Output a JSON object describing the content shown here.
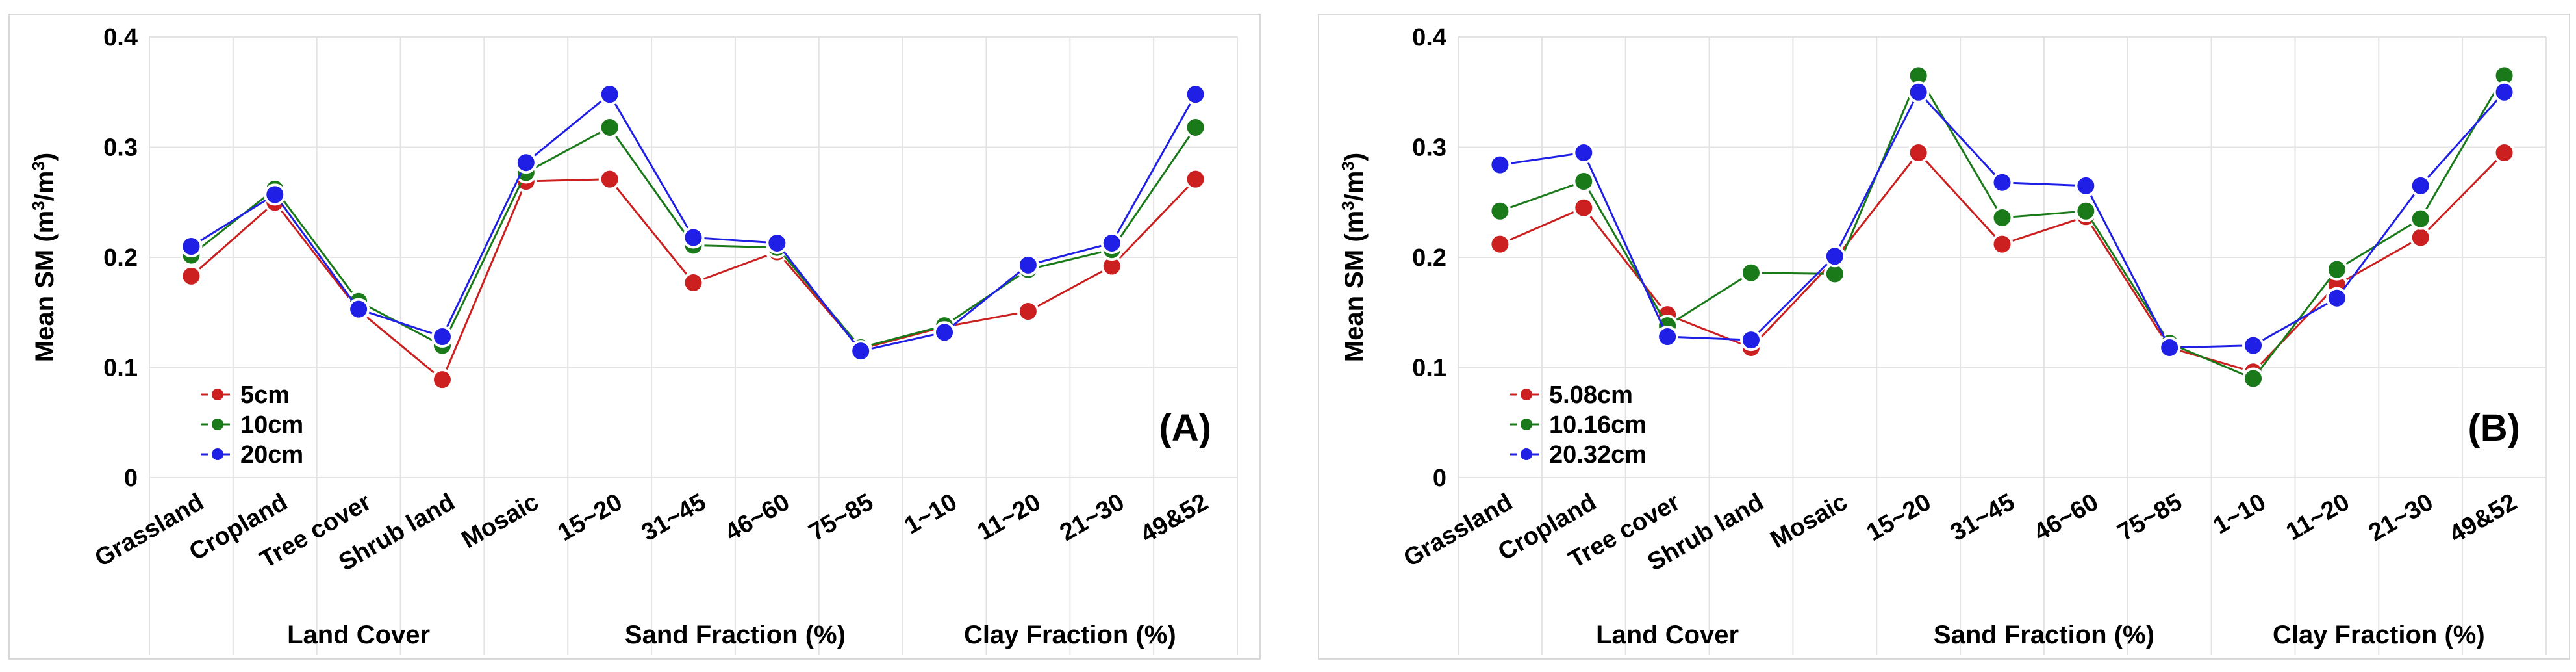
{
  "chart_data": [
    {
      "type": "line",
      "panel": "(A)",
      "categories": [
        "Grassland",
        "Cropland",
        "Tree cover",
        "Shrub land",
        "Mosaic",
        "15~20",
        "31~45",
        "46~60",
        "75~85",
        "1~10",
        "11~20",
        "21~30",
        "49&52"
      ],
      "groups": [
        {
          "label": "Land Cover",
          "start": 0,
          "end": 4
        },
        {
          "label": "Sand Fraction (%)",
          "start": 5,
          "end": 8
        },
        {
          "label": "Clay Fraction (%)",
          "start": 9,
          "end": 12
        }
      ],
      "ylabel_main": "Mean SM (m",
      "ylabel_sup1": "3",
      "ylabel_mid": "/m",
      "ylabel_sup2": "3",
      "ylabel_end": ")",
      "ylim": [
        0,
        0.4
      ],
      "yticks": [
        "0",
        "0.1",
        "0.2",
        "0.3",
        "0.4"
      ],
      "legend_position": "bottom-left",
      "series": [
        {
          "name": "5cm",
          "color": "#cc1f1f",
          "values": [
            0.183,
            0.25,
            0.152,
            0.089,
            0.269,
            0.271,
            0.177,
            0.205,
            0.117,
            0.137,
            0.151,
            0.192,
            0.271
          ]
        },
        {
          "name": "10cm",
          "color": "#1a7a1a",
          "values": [
            0.202,
            0.262,
            0.16,
            0.12,
            0.277,
            0.318,
            0.211,
            0.209,
            0.118,
            0.138,
            0.189,
            0.207,
            0.318
          ]
        },
        {
          "name": "20cm",
          "color": "#1f1fe6",
          "values": [
            0.21,
            0.257,
            0.153,
            0.128,
            0.286,
            0.348,
            0.218,
            0.213,
            0.115,
            0.132,
            0.193,
            0.213,
            0.348
          ]
        }
      ]
    },
    {
      "type": "line",
      "panel": "(B)",
      "categories": [
        "Grassland",
        "Cropland",
        "Tree cover",
        "Shrub land",
        "Mosaic",
        "15~20",
        "31~45",
        "46~60",
        "75~85",
        "1~10",
        "11~20",
        "21~30",
        "49&52"
      ],
      "groups": [
        {
          "label": "Land Cover",
          "start": 0,
          "end": 4
        },
        {
          "label": "Sand Fraction (%)",
          "start": 5,
          "end": 8
        },
        {
          "label": "Clay Fraction (%)",
          "start": 9,
          "end": 12
        }
      ],
      "ylabel_main": "Mean SM (m",
      "ylabel_sup1": "3",
      "ylabel_mid": "/m",
      "ylabel_sup2": "3",
      "ylabel_end": ")",
      "ylim": [
        0,
        0.4
      ],
      "yticks": [
        "0",
        "0.1",
        "0.2",
        "0.3",
        "0.4"
      ],
      "legend_position": "bottom-left",
      "series": [
        {
          "name": "5.08cm",
          "color": "#cc1f1f",
          "values": [
            0.212,
            0.245,
            0.148,
            0.118,
            0.198,
            0.295,
            0.212,
            0.237,
            0.118,
            0.096,
            0.175,
            0.218,
            0.295
          ]
        },
        {
          "name": "10.16cm",
          "color": "#1a7a1a",
          "values": [
            0.242,
            0.269,
            0.138,
            0.186,
            0.185,
            0.365,
            0.236,
            0.242,
            0.122,
            0.09,
            0.189,
            0.235,
            0.365
          ]
        },
        {
          "name": "20.32cm",
          "color": "#1f1fe6",
          "values": [
            0.284,
            0.295,
            0.128,
            0.125,
            0.201,
            0.35,
            0.268,
            0.265,
            0.118,
            0.12,
            0.163,
            0.265,
            0.35
          ]
        }
      ]
    }
  ]
}
